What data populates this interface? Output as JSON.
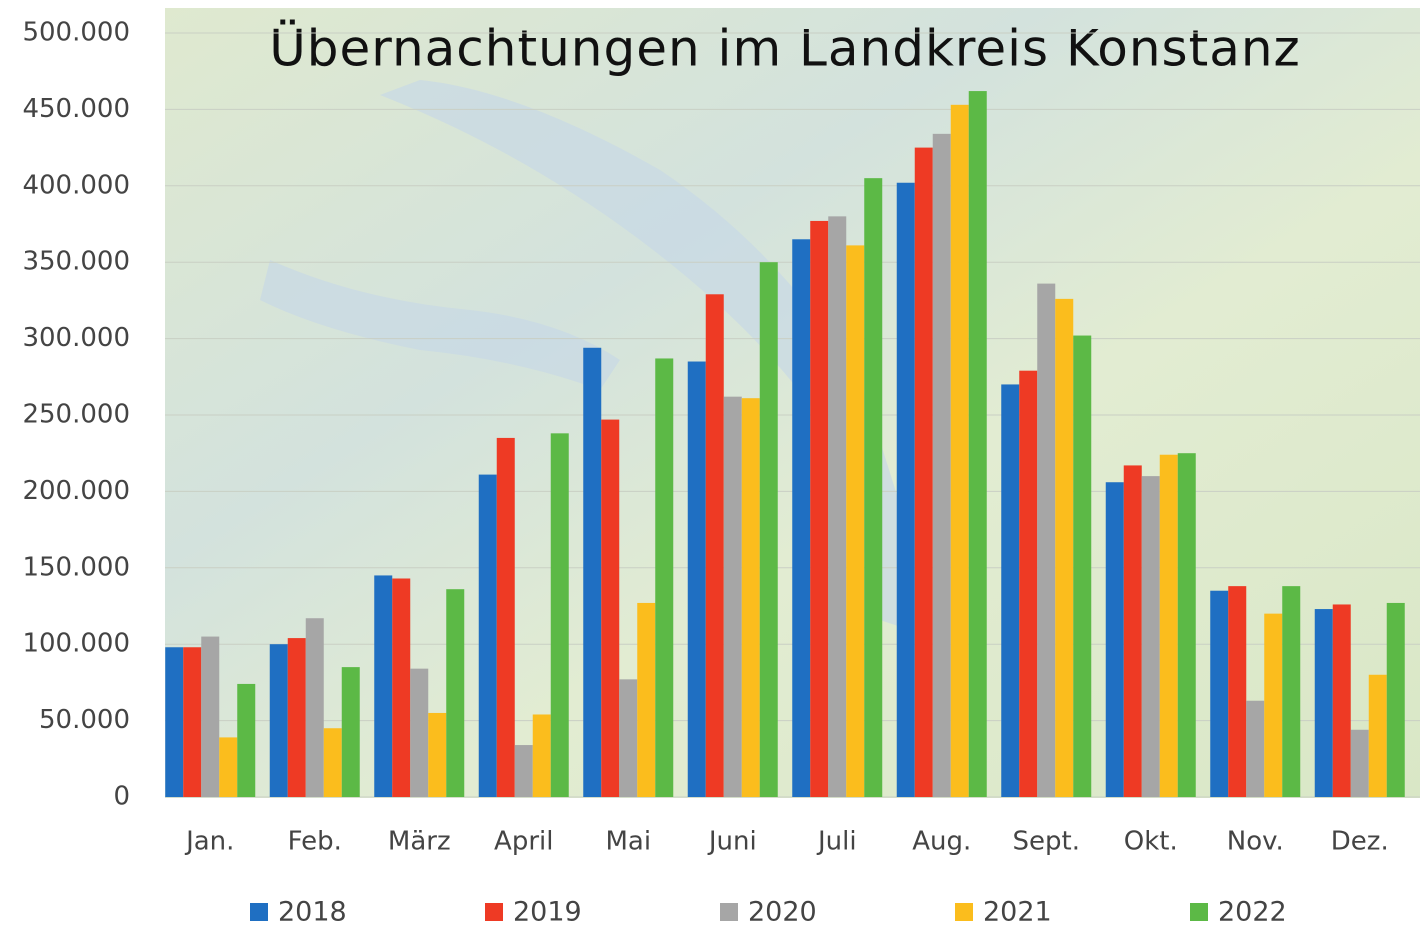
{
  "chart_data": {
    "type": "bar",
    "title": "Übernachtungen im Landkreis Konstanz",
    "categories": [
      "Jan.",
      "Feb.",
      "März",
      "April",
      "Mai",
      "Juni",
      "Juli",
      "Aug.",
      "Sept.",
      "Okt.",
      "Nov.",
      "Dez."
    ],
    "series": [
      {
        "name": "2018",
        "color": "#1f6fc2",
        "values": [
          98000,
          100000,
          145000,
          211000,
          294000,
          285000,
          365000,
          402000,
          270000,
          206000,
          135000,
          123000
        ]
      },
      {
        "name": "2019",
        "color": "#ee3a24",
        "values": [
          98000,
          104000,
          143000,
          235000,
          247000,
          329000,
          377000,
          425000,
          279000,
          217000,
          138000,
          126000
        ]
      },
      {
        "name": "2020",
        "color": "#a6a6a6",
        "values": [
          105000,
          117000,
          84000,
          34000,
          77000,
          262000,
          380000,
          434000,
          336000,
          210000,
          63000,
          44000
        ]
      },
      {
        "name": "2021",
        "color": "#fbbd1d",
        "values": [
          39000,
          45000,
          55000,
          54000,
          127000,
          261000,
          361000,
          453000,
          326000,
          224000,
          120000,
          80000
        ]
      },
      {
        "name": "2022",
        "color": "#5cb946",
        "values": [
          74000,
          85000,
          136000,
          238000,
          287000,
          350000,
          405000,
          462000,
          302000,
          225000,
          138000,
          127000
        ]
      }
    ],
    "ylim": [
      0,
      500000
    ],
    "yticks": [
      0,
      {
        "value": 50000,
        "label": "50.000"
      },
      {
        "value": 100000,
        "label": "100.000"
      },
      {
        "value": 150000,
        "label": "150.000"
      },
      {
        "value": 200000,
        "label": "200.000"
      },
      {
        "value": 250000,
        "label": "250.000"
      },
      {
        "value": 300000,
        "label": "300.000"
      },
      {
        "value": 350000,
        "label": "350.000"
      },
      {
        "value": 400000,
        "label": "400.000"
      },
      {
        "value": 450000,
        "label": "450.000"
      },
      {
        "value": 500000,
        "label": "500.000"
      }
    ],
    "grid": true
  }
}
